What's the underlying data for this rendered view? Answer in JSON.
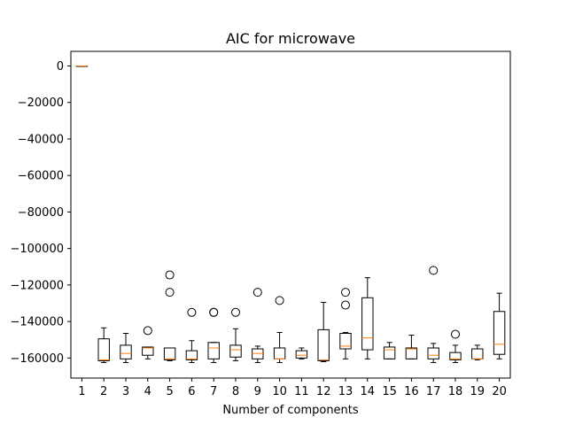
{
  "chart_data": {
    "type": "boxplot",
    "title": "AIC for microwave",
    "xlabel": "Number of components",
    "ylabel": "",
    "categories": [
      "1",
      "2",
      "3",
      "4",
      "5",
      "6",
      "7",
      "8",
      "9",
      "10",
      "11",
      "12",
      "13",
      "14",
      "15",
      "16",
      "17",
      "18",
      "19",
      "20"
    ],
    "ylim": [
      -171000,
      8000
    ],
    "yticks": [
      0,
      -20000,
      -40000,
      -60000,
      -80000,
      -100000,
      -120000,
      -140000,
      -160000
    ],
    "ytick_labels": [
      "0",
      "−20000",
      "−40000",
      "−60000",
      "−80000",
      "−100000",
      "−120000",
      "−140000",
      "−160000"
    ],
    "box_color": "#000000",
    "median_color": "#ff7f0e",
    "grid": false,
    "boxes": [
      {
        "category": "1",
        "whisker_low": 0,
        "q1": 0,
        "median": 0,
        "q3": 0,
        "whisker_high": 0,
        "outliers": []
      },
      {
        "category": "2",
        "whisker_low": -162500,
        "q1": -161500,
        "median": -161000,
        "q3": -149500,
        "whisker_high": -143500,
        "outliers": []
      },
      {
        "category": "3",
        "whisker_low": -162500,
        "q1": -160500,
        "median": -157500,
        "q3": -153000,
        "whisker_high": -146500,
        "outliers": []
      },
      {
        "category": "4",
        "whisker_low": -160500,
        "q1": -158500,
        "median": -154500,
        "q3": -154000,
        "whisker_high": -154000,
        "outliers": [
          -145000
        ]
      },
      {
        "category": "5",
        "whisker_low": -161500,
        "q1": -161000,
        "median": -160500,
        "q3": -154500,
        "whisker_high": -154500,
        "outliers": [
          -124000,
          -114500
        ]
      },
      {
        "category": "6",
        "whisker_low": -162500,
        "q1": -161000,
        "median": -160500,
        "q3": -156000,
        "whisker_high": -150500,
        "outliers": [
          -135000
        ]
      },
      {
        "category": "7",
        "whisker_low": -162500,
        "q1": -160500,
        "median": -154500,
        "q3": -151500,
        "whisker_high": -151500,
        "outliers": [
          -135000,
          -135000
        ]
      },
      {
        "category": "8",
        "whisker_low": -161500,
        "q1": -159500,
        "median": -155500,
        "q3": -153000,
        "whisker_high": -144000,
        "outliers": [
          -135000
        ]
      },
      {
        "category": "9",
        "whisker_low": -162500,
        "q1": -160500,
        "median": -157500,
        "q3": -155000,
        "whisker_high": -153500,
        "outliers": [
          -124000
        ]
      },
      {
        "category": "10",
        "whisker_low": -162500,
        "q1": -160500,
        "median": -160500,
        "q3": -154500,
        "whisker_high": -146000,
        "outliers": [
          -128500
        ]
      },
      {
        "category": "11",
        "whisker_low": -160500,
        "q1": -160000,
        "median": -158500,
        "q3": -156000,
        "whisker_high": -154500,
        "outliers": []
      },
      {
        "category": "12",
        "whisker_low": -162000,
        "q1": -161500,
        "median": -161000,
        "q3": -144500,
        "whisker_high": -129500,
        "outliers": []
      },
      {
        "category": "13",
        "whisker_low": -160500,
        "q1": -155000,
        "median": -153500,
        "q3": -146500,
        "whisker_high": -146000,
        "outliers": [
          -131000,
          -124000
        ]
      },
      {
        "category": "14",
        "whisker_low": -160500,
        "q1": -155500,
        "median": -149000,
        "q3": -127000,
        "whisker_high": -116000,
        "outliers": []
      },
      {
        "category": "15",
        "whisker_low": -160500,
        "q1": -160500,
        "median": -155500,
        "q3": -154000,
        "whisker_high": -151500,
        "outliers": []
      },
      {
        "category": "16",
        "whisker_low": -160500,
        "q1": -160500,
        "median": -155000,
        "q3": -154500,
        "whisker_high": -147500,
        "outliers": []
      },
      {
        "category": "17",
        "whisker_low": -162500,
        "q1": -160500,
        "median": -158500,
        "q3": -154500,
        "whisker_high": -152000,
        "outliers": [
          -112000
        ]
      },
      {
        "category": "18",
        "whisker_low": -162500,
        "q1": -161000,
        "median": -160500,
        "q3": -157000,
        "whisker_high": -153000,
        "outliers": [
          -147000
        ]
      },
      {
        "category": "19",
        "whisker_low": -161000,
        "q1": -160500,
        "median": -160500,
        "q3": -155000,
        "whisker_high": -153000,
        "outliers": []
      },
      {
        "category": "20",
        "whisker_low": -160500,
        "q1": -158000,
        "median": -152500,
        "q3": -134500,
        "whisker_high": -124500,
        "outliers": []
      }
    ]
  }
}
